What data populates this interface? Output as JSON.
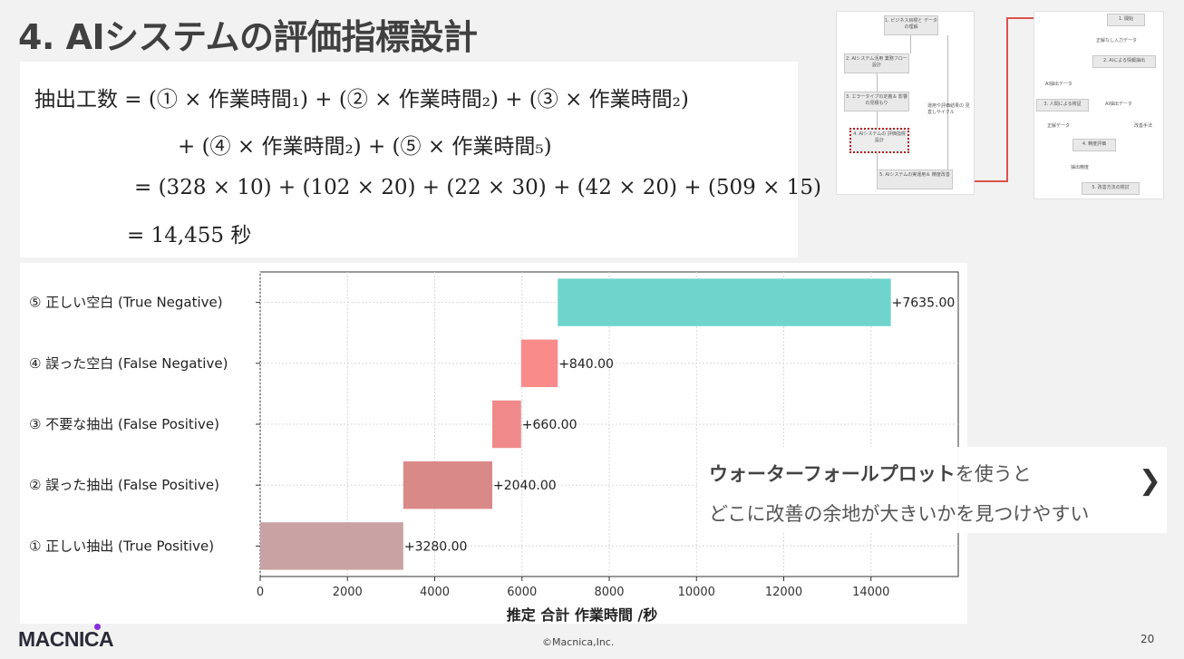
{
  "slide": {
    "title": "4. AIシステムの評価指標設計",
    "copyright": "©Macnica,Inc.",
    "page_number": "20",
    "logo_text": "MACNICA"
  },
  "formula": {
    "line1": "抽出工数 = (① × 作業時間₁) + (② × 作業時間₂) + (③ × 作業時間₂)",
    "line2": "+ (④ × 作業時間₂) + (⑤ × 作業時間₅)",
    "line3": "= (328 × 10) + (102 × 20) + (22 × 30) + (42 × 20) + (509 × 15)",
    "line4": "= 14,455 秒"
  },
  "flow_thumb_left": {
    "steps": [
      "1. ビジネス目標と データの理解",
      "2. AIシステム活用 業務フロー設計",
      "3. エラータイプの定義＆ 影響の見積もり",
      "4. AIシステムの 評価指標設計",
      "5. AIシステムの実運用＆ 精度改善"
    ],
    "side_label": "運用や評価結果の 見直しサイクル"
  },
  "flow_thumb_right": {
    "steps": [
      "1. 開始",
      "2. AIによる情報抽出",
      "3. 人間による検証",
      "4. 精度評価",
      "5. 改善方法の検討"
    ],
    "labels": [
      "正解なし入力データ",
      "AI抽出データ",
      "AI抽出データ",
      "正解データ",
      "抽出精度",
      "改善手法"
    ]
  },
  "note": {
    "bold_part": "ウォーターフォールプロット",
    "rest_line1": "を使うと",
    "line2": "どこに改善の余地が大きいかを見つけやすい",
    "arrow": "❯"
  },
  "chart_data": {
    "type": "bar",
    "subtype": "horizontal-waterfall",
    "categories": [
      "① 正しい抽出 (True Positive)",
      "② 誤った抽出 (False Positive)",
      "③ 不要な抽出 (False Positive)",
      "④ 誤った空白 (False Negative)",
      "⑤ 正しい空白 (True Negative)"
    ],
    "values": [
      3280,
      2040,
      660,
      840,
      7635
    ],
    "value_labels": [
      "+3280.00",
      "+2040.00",
      "+660.00",
      "+840.00",
      "+7635.00"
    ],
    "colors": [
      "#c9a3a3",
      "#da8989",
      "#f08a8a",
      "#f98b8b",
      "#6fd5cc"
    ],
    "xlabel": "推定 合計 作業時間 /秒",
    "ylabel": "",
    "title": "",
    "xlim": [
      0,
      16000
    ],
    "xticks": [
      0,
      2000,
      4000,
      6000,
      8000,
      10000,
      12000,
      14000
    ],
    "grid": true
  }
}
